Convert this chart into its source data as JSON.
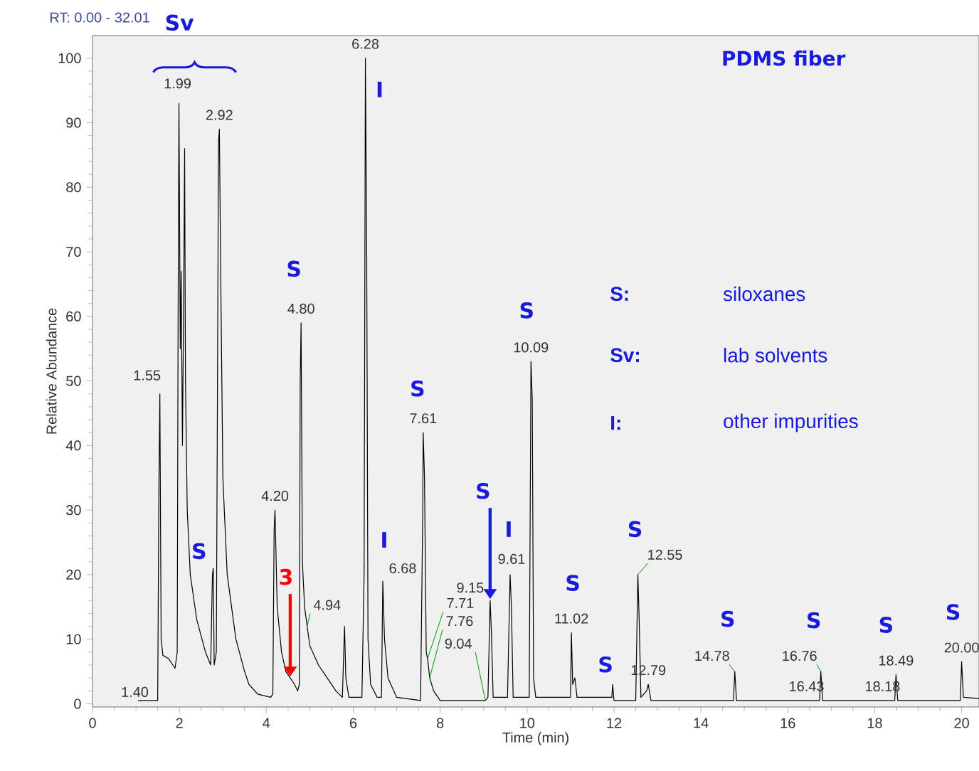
{
  "chart_data": {
    "type": "line",
    "xlabel": "Time (min)",
    "ylabel": "Relative Abundance",
    "xlim": [
      0,
      20.4
    ],
    "ylim": [
      -0.5,
      103.5
    ],
    "xticks": [
      0,
      2,
      4,
      6,
      8,
      10,
      12,
      14,
      16,
      18,
      20
    ],
    "yticks": [
      0,
      10,
      20,
      30,
      40,
      50,
      60,
      70,
      80,
      90,
      100
    ],
    "grid": false,
    "marker": "none",
    "line_style": "solid",
    "series": [
      {
        "color": "#000000",
        "x": [
          1.05,
          1.5,
          1.53,
          1.55,
          1.58,
          1.62,
          1.75,
          1.85,
          1.9,
          1.95,
          1.97,
          1.99,
          2.02,
          2.04,
          2.07,
          2.1,
          2.12,
          2.14,
          2.18,
          2.25,
          2.4,
          2.6,
          2.72,
          2.76,
          2.78,
          2.8,
          2.85,
          2.9,
          2.92,
          2.95,
          3.0,
          3.1,
          3.3,
          3.5,
          3.6,
          3.8,
          4.1,
          4.15,
          4.18,
          4.2,
          4.25,
          4.35,
          4.45,
          4.55,
          4.65,
          4.72,
          4.76,
          4.78,
          4.8,
          4.83,
          4.88,
          4.94,
          5.0,
          5.2,
          5.4,
          5.6,
          5.75,
          5.8,
          5.83,
          5.9,
          6.2,
          6.25,
          6.28,
          6.31,
          6.34,
          6.4,
          6.55,
          6.65,
          6.68,
          6.72,
          6.8,
          7.0,
          7.55,
          7.6,
          7.61,
          7.64,
          7.68,
          7.71,
          7.76,
          7.85,
          8.0,
          9.04,
          9.1,
          9.15,
          9.18,
          9.22,
          9.55,
          9.61,
          9.64,
          9.68,
          10.05,
          10.09,
          10.12,
          10.15,
          10.2,
          11.0,
          11.02,
          11.05,
          11.1,
          11.15,
          11.95,
          11.97,
          12.0,
          12.5,
          12.55,
          12.58,
          12.62,
          12.75,
          12.79,
          12.85,
          14.75,
          14.78,
          14.82,
          16.43,
          16.73,
          16.76,
          16.8,
          18.18,
          18.46,
          18.49,
          18.53,
          19.97,
          20.0,
          20.04,
          20.4
        ],
        "values": [
          0.5,
          0.5,
          35,
          48,
          10,
          7.5,
          7,
          6,
          5.5,
          8,
          60,
          93,
          55,
          67,
          40,
          64,
          86,
          50,
          30,
          20,
          13,
          8,
          6,
          20,
          21,
          6,
          8,
          87,
          89,
          67,
          35,
          20,
          10,
          5,
          3,
          1.5,
          1,
          1.5,
          27,
          30,
          15,
          8,
          5,
          4,
          3,
          2,
          3,
          50,
          59,
          22,
          15,
          12,
          9,
          6,
          4,
          2,
          1,
          12,
          4,
          1,
          1,
          20,
          100,
          70,
          10,
          3,
          1,
          1,
          19,
          10,
          4,
          1,
          0.5,
          30,
          42,
          35,
          8,
          7,
          4,
          2,
          0.5,
          0.5,
          1,
          16,
          11,
          1,
          1,
          20,
          15,
          1,
          1,
          53,
          47,
          4,
          1,
          1,
          11,
          3,
          4,
          1,
          1,
          3,
          0.5,
          0.5,
          20,
          13,
          1,
          2,
          3,
          0.5,
          0.5,
          5,
          0.5,
          0.5,
          0.5,
          5,
          0.5,
          0.5,
          0.5,
          4.5,
          0.5,
          0.5,
          6.5,
          1,
          0.8
        ]
      }
    ],
    "annotations": [
      "RT: 0.00 - 32.01",
      "PDMS fiber",
      "S:",
      "siloxanes",
      "Sv:",
      "lab solvents",
      "I:",
      "other impurities",
      "Sv",
      {
        "text": "1.40",
        "x": 1.4,
        "y": 0.5
      },
      {
        "text": "1.55",
        "x": 1.55,
        "y": 48
      },
      {
        "text": "1.99",
        "x": 1.99,
        "y": 93
      },
      {
        "text": "2.92",
        "x": 2.92,
        "y": 89
      },
      {
        "text": "4.20",
        "x": 4.2,
        "y": 30
      },
      {
        "text": "4.80",
        "x": 4.8,
        "y": 59
      },
      {
        "text": "4.94",
        "x": 4.94,
        "y": 12
      },
      {
        "text": "6.28",
        "x": 6.28,
        "y": 100
      },
      {
        "text": "6.68",
        "x": 6.68,
        "y": 19
      },
      {
        "text": "7.61",
        "x": 7.61,
        "y": 42
      },
      {
        "text": "7.71",
        "x": 7.71,
        "y": 7
      },
      {
        "text": "7.76",
        "x": 7.76,
        "y": 4
      },
      {
        "text": "9.04",
        "x": 9.04,
        "y": 0.5
      },
      {
        "text": "9.15",
        "x": 9.15,
        "y": 16
      },
      {
        "text": "9.61",
        "x": 9.61,
        "y": 20
      },
      {
        "text": "10.09",
        "x": 10.09,
        "y": 53
      },
      {
        "text": "11.02",
        "x": 11.02,
        "y": 11
      },
      {
        "text": "12.55",
        "x": 12.55,
        "y": 20
      },
      {
        "text": "12.79",
        "x": 12.79,
        "y": 3
      },
      {
        "text": "14.78",
        "x": 14.78,
        "y": 5
      },
      {
        "text": "16.43",
        "x": 16.43,
        "y": 0.5
      },
      {
        "text": "16.76",
        "x": 16.76,
        "y": 5
      },
      {
        "text": "18.18",
        "x": 18.18,
        "y": 0.5
      },
      {
        "text": "18.49",
        "x": 18.49,
        "y": 4.5
      },
      {
        "text": "20.00",
        "x": 20.0,
        "y": 6.5
      },
      {
        "text": "S",
        "x": 2.78,
        "y": 21
      },
      {
        "text": "S",
        "x": 4.8,
        "y": 59
      },
      {
        "text": "I",
        "x": 6.28,
        "y": 100
      },
      {
        "text": "I",
        "x": 6.68,
        "y": 19
      },
      {
        "text": "S",
        "x": 7.61,
        "y": 42
      },
      {
        "text": "S",
        "x": 9.15,
        "y": 16
      },
      {
        "text": "I",
        "x": 9.61,
        "y": 20
      },
      {
        "text": "S",
        "x": 10.09,
        "y": 53
      },
      {
        "text": "S",
        "x": 11.02,
        "y": 11
      },
      {
        "text": "S",
        "x": 11.97,
        "y": 3
      },
      {
        "text": "S",
        "x": 12.55,
        "y": 20
      },
      {
        "text": "S",
        "x": 14.78,
        "y": 5
      },
      {
        "text": "S",
        "x": 16.76,
        "y": 5
      },
      {
        "text": "S",
        "x": 18.49,
        "y": 4.5
      },
      {
        "text": "S",
        "x": 20.0,
        "y": 6.5
      },
      {
        "text": "3",
        "x": 4.55,
        "y": 4
      }
    ]
  }
}
